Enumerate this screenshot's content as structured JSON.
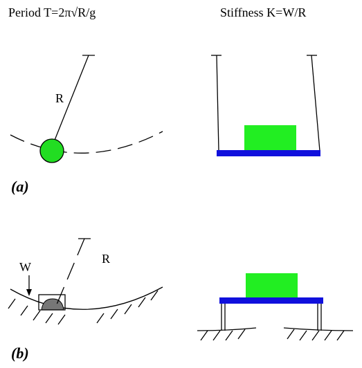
{
  "panel_a": {
    "period_label": "Period  T=2π√R/g",
    "stiffness_label": "Stiffness  K=W/R",
    "radius_label": "R",
    "caption": "(a)"
  },
  "panel_b": {
    "weight_label": "W",
    "radius_label": "R",
    "caption": "(b)"
  }
}
